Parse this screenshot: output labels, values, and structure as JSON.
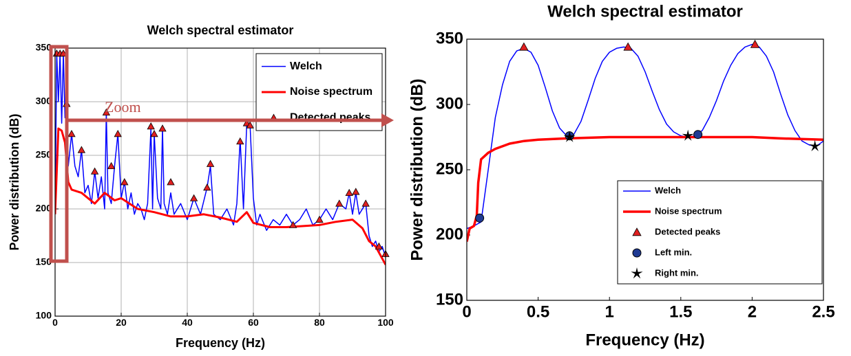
{
  "chart_data": [
    {
      "type": "line",
      "title": "Welch spectral estimator",
      "xlabel": "Frequency (Hz)",
      "ylabel": "Power distribution (dB)",
      "xlim": [
        0,
        100
      ],
      "ylim": [
        100,
        350
      ],
      "xticks": [
        0,
        20,
        40,
        60,
        80,
        100
      ],
      "yticks": [
        100,
        150,
        200,
        250,
        300,
        350
      ],
      "grid": true,
      "legend": "upper right",
      "annotations": [
        "Zoom"
      ],
      "series": [
        {
          "name": "Welch",
          "color": "#0000ff",
          "marker": "none",
          "line_width": 1.5,
          "x": [
            0,
            0.5,
            1,
            1.5,
            2,
            2.5,
            3,
            3.5,
            4,
            5,
            6,
            7,
            8,
            9,
            10,
            11,
            12,
            13,
            14,
            15,
            15.5,
            16,
            17,
            18,
            19,
            20,
            21,
            22,
            23,
            24,
            25,
            26,
            27,
            28,
            29,
            29.5,
            30,
            31,
            32,
            32.5,
            33,
            34,
            35,
            36,
            38,
            40,
            42,
            44,
            46,
            47,
            48,
            50,
            52,
            54,
            55,
            56,
            57,
            58,
            59,
            60,
            61,
            62,
            64,
            66,
            68,
            70,
            72,
            74,
            76,
            78,
            80,
            82,
            84,
            86,
            88,
            89,
            90,
            91,
            92,
            94,
            95,
            96,
            97,
            98,
            99,
            100
          ],
          "values": [
            195,
            345,
            300,
            345,
            280,
            345,
            285,
            300,
            240,
            270,
            240,
            230,
            255,
            215,
            222,
            205,
            235,
            210,
            230,
            200,
            290,
            215,
            205,
            240,
            270,
            210,
            225,
            200,
            215,
            195,
            205,
            200,
            190,
            205,
            275,
            200,
            270,
            210,
            200,
            275,
            205,
            195,
            215,
            195,
            205,
            190,
            210,
            195,
            220,
            240,
            195,
            190,
            200,
            185,
            205,
            265,
            200,
            280,
            278,
            210,
            185,
            195,
            180,
            190,
            185,
            195,
            185,
            190,
            200,
            185,
            190,
            200,
            190,
            205,
            200,
            215,
            195,
            215,
            195,
            205,
            175,
            165,
            170,
            160,
            165,
            155
          ]
        },
        {
          "name": "Noise spectrum",
          "color": "#ff0000",
          "marker": "none",
          "line_width": 3,
          "x": [
            0,
            1,
            2,
            3,
            4,
            5,
            8,
            10,
            12,
            15,
            18,
            20,
            25,
            30,
            35,
            40,
            45,
            50,
            55,
            58,
            60,
            65,
            70,
            80,
            85,
            90,
            93,
            95,
            97,
            100
          ],
          "values": [
            195,
            275,
            273,
            262,
            225,
            218,
            215,
            210,
            205,
            215,
            208,
            210,
            200,
            197,
            193,
            193,
            195,
            192,
            188,
            197,
            187,
            183,
            183,
            185,
            188,
            190,
            182,
            170,
            165,
            148
          ]
        },
        {
          "name": "Detected peaks",
          "color": "#e02020",
          "marker": "triangle",
          "line_width": 0,
          "x": [
            0.5,
            1.5,
            2.5,
            3.5,
            5,
            8,
            12,
            15.5,
            17,
            19,
            21,
            29,
            30,
            32.5,
            35,
            42,
            46,
            47,
            56,
            58,
            59,
            72,
            80,
            86,
            89,
            91,
            94,
            98,
            100
          ],
          "values": [
            345,
            345,
            345,
            298,
            270,
            255,
            235,
            290,
            240,
            270,
            225,
            277,
            270,
            275,
            225,
            210,
            220,
            242,
            263,
            280,
            278,
            185,
            190,
            205,
            215,
            216,
            205,
            165,
            158
          ]
        }
      ]
    },
    {
      "type": "line",
      "title": "Welch spectral estimator",
      "xlabel": "Frequency (Hz)",
      "ylabel": "Power distribution (dB)",
      "xlim": [
        0,
        2.5
      ],
      "ylim": [
        150,
        350
      ],
      "xticks": [
        0,
        0.5,
        1,
        1.5,
        2,
        2.5
      ],
      "yticks": [
        150,
        200,
        250,
        300,
        350
      ],
      "grid": false,
      "legend": "lower right",
      "series": [
        {
          "name": "Welch",
          "color": "#0000ff",
          "marker": "none",
          "line_width": 1.5,
          "x": [
            0,
            0.05,
            0.1,
            0.15,
            0.2,
            0.25,
            0.3,
            0.35,
            0.4,
            0.45,
            0.5,
            0.55,
            0.6,
            0.65,
            0.7,
            0.75,
            0.8,
            0.85,
            0.9,
            0.95,
            1,
            1.05,
            1.1,
            1.15,
            1.2,
            1.25,
            1.3,
            1.35,
            1.4,
            1.45,
            1.5,
            1.55,
            1.6,
            1.65,
            1.7,
            1.75,
            1.8,
            1.85,
            1.9,
            1.95,
            2,
            2.05,
            2.1,
            2.15,
            2.2,
            2.25,
            2.3,
            2.35,
            2.4,
            2.45,
            2.5
          ],
          "values": [
            205,
            207,
            210,
            250,
            290,
            315,
            333,
            341,
            343,
            340,
            330,
            313,
            295,
            282,
            276,
            277,
            287,
            303,
            320,
            333,
            340,
            343,
            344,
            343,
            337,
            325,
            310,
            296,
            285,
            279,
            276,
            275,
            276,
            280,
            290,
            303,
            318,
            330,
            339,
            344,
            346,
            344,
            337,
            325,
            308,
            292,
            280,
            272,
            269,
            268,
            272
          ]
        },
        {
          "name": "Noise spectrum",
          "color": "#ff0000",
          "marker": "none",
          "line_width": 3.5,
          "x": [
            0,
            0.02,
            0.05,
            0.07,
            0.08,
            0.1,
            0.15,
            0.2,
            0.3,
            0.4,
            0.5,
            0.7,
            1,
            1.5,
            2,
            2.2,
            2.5
          ],
          "values": [
            195,
            205,
            207,
            215,
            240,
            258,
            263,
            266,
            270,
            272,
            273,
            274,
            275,
            275,
            275,
            274,
            273
          ]
        },
        {
          "name": "Detected peaks",
          "color": "#e02020",
          "marker": "triangle",
          "line_width": 0,
          "x": [
            0.4,
            1.13,
            2.02
          ],
          "values": [
            344,
            344,
            346
          ]
        },
        {
          "name": "Left min.",
          "color": "#1f3a93",
          "marker": "circle",
          "line_width": 0,
          "x": [
            0.09,
            0.72,
            1.62
          ],
          "values": [
            213,
            276,
            277
          ]
        },
        {
          "name": "Right min.",
          "color": "#000000",
          "marker": "star",
          "line_width": 0,
          "x": [
            0.72,
            1.55,
            2.44
          ],
          "values": [
            275,
            276,
            268
          ]
        }
      ]
    }
  ]
}
